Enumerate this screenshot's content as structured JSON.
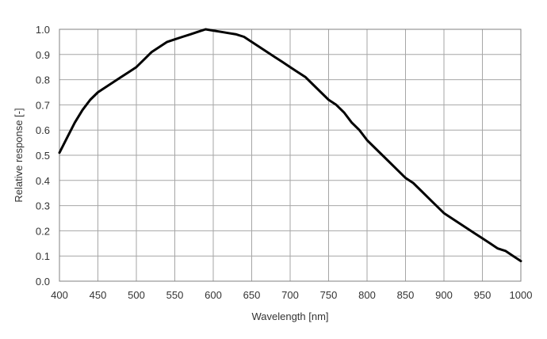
{
  "chart_data": {
    "type": "line",
    "title": "",
    "xlabel": "Wavelength [nm]",
    "ylabel": "Relative response [-]",
    "xlim": [
      400,
      1000
    ],
    "ylim": [
      0,
      1.0
    ],
    "x_ticks": [
      400,
      450,
      500,
      550,
      600,
      650,
      700,
      750,
      800,
      850,
      900,
      950,
      1000
    ],
    "y_ticks": [
      "0.0",
      "0.1",
      "0.2",
      "0.3",
      "0.4",
      "0.5",
      "0.6",
      "0.7",
      "0.8",
      "0.9",
      "1.0"
    ],
    "grid": true,
    "legend": "none",
    "line_color": "#000000",
    "series": [
      {
        "x": [
          400,
          410,
          420,
          430,
          440,
          450,
          460,
          470,
          480,
          490,
          500,
          510,
          520,
          530,
          540,
          550,
          560,
          570,
          580,
          590,
          600,
          610,
          620,
          630,
          640,
          650,
          660,
          670,
          680,
          690,
          700,
          710,
          720,
          730,
          740,
          750,
          760,
          770,
          780,
          790,
          800,
          810,
          820,
          830,
          840,
          850,
          860,
          870,
          880,
          890,
          900,
          910,
          920,
          930,
          940,
          950,
          960,
          970,
          980,
          990,
          1000
        ],
        "values": [
          0.51,
          0.57,
          0.63,
          0.68,
          0.72,
          0.75,
          0.77,
          0.79,
          0.81,
          0.83,
          0.85,
          0.88,
          0.91,
          0.93,
          0.95,
          0.96,
          0.97,
          0.98,
          0.99,
          1.0,
          0.995,
          0.99,
          0.985,
          0.98,
          0.97,
          0.95,
          0.93,
          0.91,
          0.89,
          0.87,
          0.85,
          0.83,
          0.81,
          0.78,
          0.75,
          0.72,
          0.7,
          0.67,
          0.63,
          0.6,
          0.56,
          0.53,
          0.5,
          0.47,
          0.44,
          0.41,
          0.39,
          0.36,
          0.33,
          0.3,
          0.27,
          0.25,
          0.23,
          0.21,
          0.19,
          0.17,
          0.15,
          0.13,
          0.12,
          0.1,
          0.08
        ]
      }
    ]
  }
}
